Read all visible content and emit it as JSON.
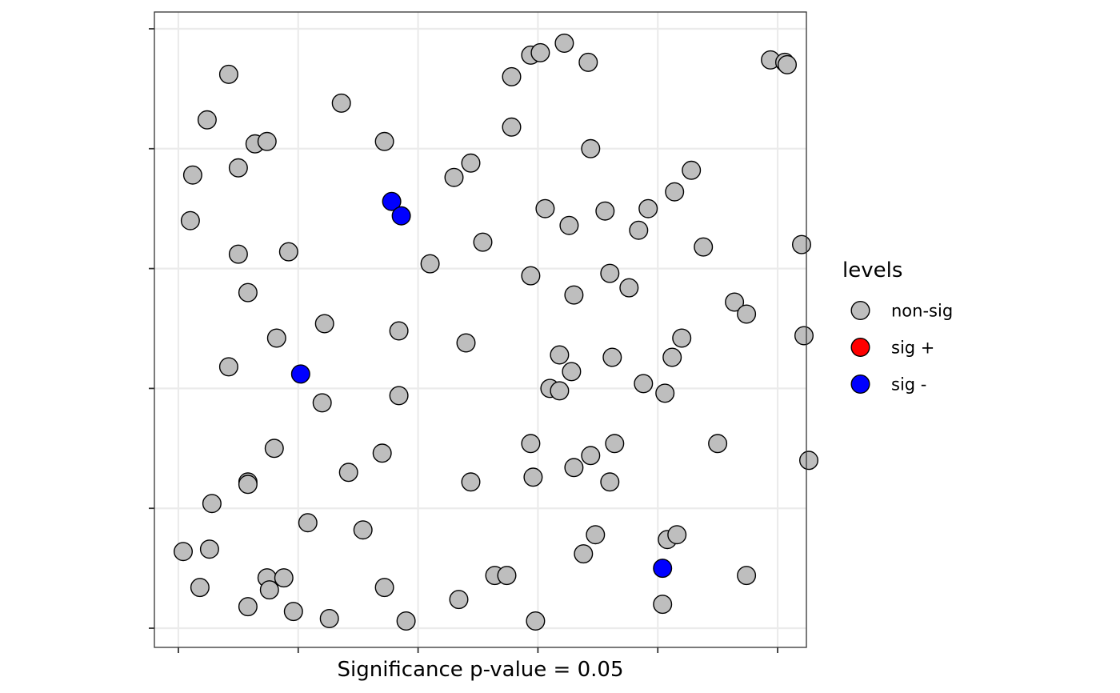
{
  "chart_data": {
    "type": "scatter",
    "title": "",
    "xlabel": "Significance p-value = 0.05",
    "ylabel": "",
    "xlim": [
      -0.1,
      2.62
    ],
    "ylim": [
      -0.08,
      2.57
    ],
    "x_ticks": [
      0,
      0.5,
      1,
      1.5,
      2,
      2.5
    ],
    "y_ticks": [
      0,
      0.5,
      1,
      1.5,
      2,
      2.5
    ],
    "x_tick_labels_shown": false,
    "y_tick_labels_shown": false,
    "grid": true,
    "legend": {
      "title": "levels",
      "position": "right",
      "entries": [
        {
          "label": "non-sig",
          "color": "#bebebe"
        },
        {
          "label": "sig +",
          "color": "#ff0000"
        },
        {
          "label": "sig -",
          "color": "#0000ff"
        }
      ]
    },
    "series": [
      {
        "name": "non-sig",
        "color": "#bebebe",
        "points": [
          [
            0.21,
            2.31
          ],
          [
            0.12,
            2.12
          ],
          [
            0.06,
            1.89
          ],
          [
            0.05,
            1.7
          ],
          [
            0.32,
            2.02
          ],
          [
            0.37,
            2.03
          ],
          [
            0.25,
            1.92
          ],
          [
            0.68,
            2.19
          ],
          [
            0.86,
            2.03
          ],
          [
            0.25,
            1.56
          ],
          [
            0.29,
            1.4
          ],
          [
            0.46,
            1.57
          ],
          [
            0.41,
            1.21
          ],
          [
            0.61,
            1.27
          ],
          [
            0.92,
            1.24
          ],
          [
            0.21,
            1.09
          ],
          [
            0.6,
            0.94
          ],
          [
            0.92,
            0.97
          ],
          [
            0.4,
            0.75
          ],
          [
            0.29,
            0.61
          ],
          [
            0.29,
            0.6
          ],
          [
            0.71,
            0.65
          ],
          [
            0.85,
            0.73
          ],
          [
            0.14,
            0.52
          ],
          [
            0.54,
            0.44
          ],
          [
            0.77,
            0.41
          ],
          [
            0.02,
            0.32
          ],
          [
            0.13,
            0.33
          ],
          [
            0.09,
            0.17
          ],
          [
            0.37,
            0.21
          ],
          [
            0.38,
            0.16
          ],
          [
            0.44,
            0.21
          ],
          [
            0.29,
            0.09
          ],
          [
            0.48,
            0.07
          ],
          [
            0.63,
            0.04
          ],
          [
            0.86,
            0.17
          ],
          [
            0.95,
            0.03
          ],
          [
            1.05,
            1.52
          ],
          [
            1.15,
            1.88
          ],
          [
            1.22,
            1.94
          ],
          [
            1.27,
            1.61
          ],
          [
            1.2,
            1.19
          ],
          [
            1.39,
            2.3
          ],
          [
            1.39,
            2.09
          ],
          [
            1.22,
            0.61
          ],
          [
            1.32,
            0.22
          ],
          [
            1.37,
            0.22
          ],
          [
            1.17,
            0.12
          ],
          [
            1.47,
            2.39
          ],
          [
            1.51,
            2.4
          ],
          [
            1.61,
            2.44
          ],
          [
            1.71,
            2.36
          ],
          [
            1.72,
            2.0
          ],
          [
            1.47,
            1.47
          ],
          [
            1.53,
            1.75
          ],
          [
            1.63,
            1.68
          ],
          [
            1.65,
            1.39
          ],
          [
            1.78,
            1.74
          ],
          [
            1.8,
            1.48
          ],
          [
            1.92,
            1.66
          ],
          [
            1.96,
            1.75
          ],
          [
            1.88,
            1.42
          ],
          [
            1.59,
            1.14
          ],
          [
            1.64,
            1.07
          ],
          [
            1.55,
            1.0
          ],
          [
            1.59,
            0.99
          ],
          [
            1.81,
            1.13
          ],
          [
            1.94,
            1.02
          ],
          [
            1.47,
            0.77
          ],
          [
            1.48,
            0.63
          ],
          [
            1.49,
            0.03
          ],
          [
            1.65,
            0.67
          ],
          [
            1.72,
            0.72
          ],
          [
            1.82,
            0.77
          ],
          [
            1.8,
            0.61
          ],
          [
            1.74,
            0.39
          ],
          [
            1.69,
            0.31
          ],
          [
            2.03,
            0.98
          ],
          [
            2.06,
            1.13
          ],
          [
            2.1,
            1.21
          ],
          [
            2.07,
            1.82
          ],
          [
            2.14,
            1.91
          ],
          [
            2.19,
            1.59
          ],
          [
            2.04,
            0.37
          ],
          [
            2.08,
            0.39
          ],
          [
            2.02,
            0.1
          ],
          [
            2.25,
            0.77
          ],
          [
            2.32,
            1.36
          ],
          [
            2.37,
            1.31
          ],
          [
            2.47,
            2.37
          ],
          [
            2.53,
            2.36
          ],
          [
            2.54,
            2.35
          ],
          [
            2.6,
            1.6
          ],
          [
            2.61,
            1.22
          ],
          [
            2.63,
            0.7
          ],
          [
            2.37,
            0.22
          ]
        ]
      },
      {
        "name": "sig -",
        "color": "#0000ff",
        "points": [
          [
            0.89,
            1.78
          ],
          [
            0.93,
            1.72
          ],
          [
            0.51,
            1.06
          ],
          [
            2.02,
            0.25
          ]
        ]
      }
    ]
  }
}
